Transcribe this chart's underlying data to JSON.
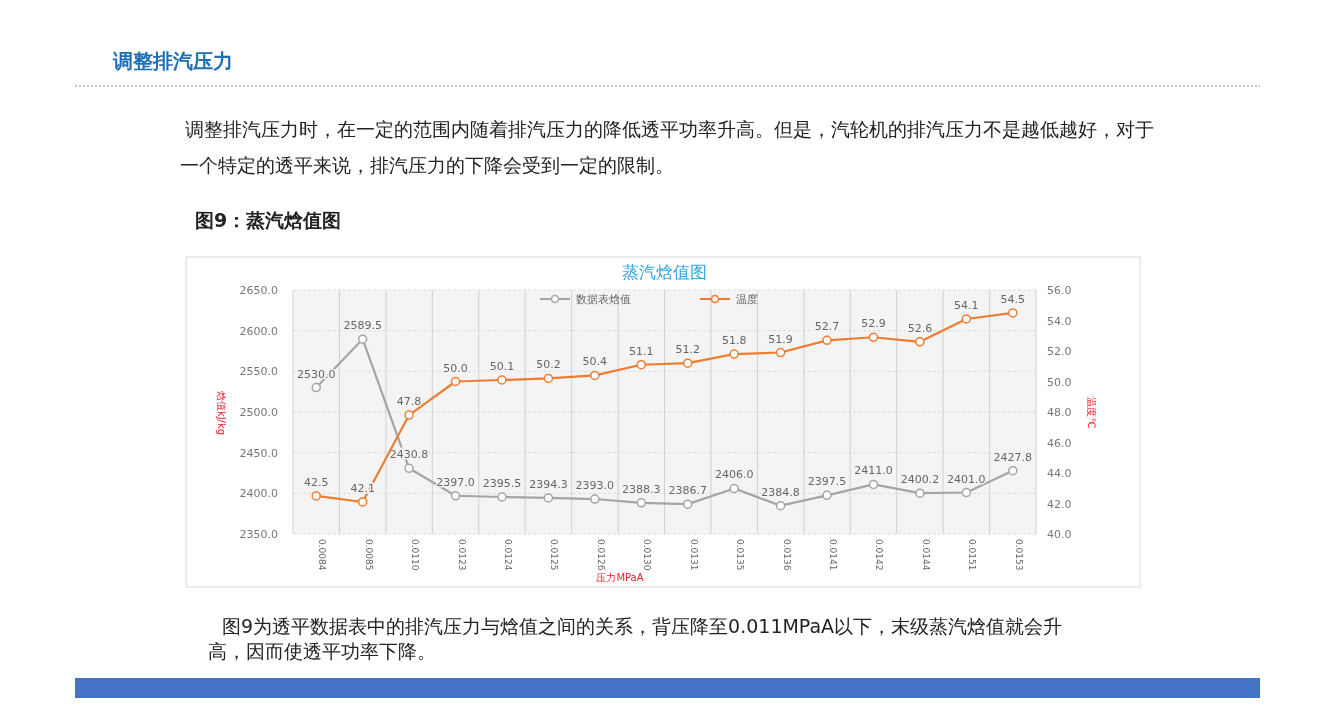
{
  "chart_data": {
    "type": "line",
    "title": "蒸汽焓值图",
    "xlabel": "压力MPaA",
    "ylabel": "焓值kJ/kg",
    "y2label": "温度℃",
    "annotations": [
      "调整排汽压力",
      "调整排汽压力时，在一定的范围内随着排汽压力的降低透平功率升高。但是，汽轮机的排汽压力不是越低越好，对于一个特定的透平来说，排汽压力的下降会受到一定的限制。",
      "图9：蒸汽焓值图",
      "图9为透平数据表中的排汽压力与焓值之间的关系，背压降至0.011MPaA以下，末级蒸汽焓值就会升高，因而使透平功率下降。"
    ],
    "categories": [
      "0.0084",
      "0.0085",
      "0.0110",
      "0.0123",
      "0.0124",
      "0.0125",
      "0.0126",
      "0.0130",
      "0.0131",
      "0.0135",
      "0.0136",
      "0.0141",
      "0.0142",
      "0.0144",
      "0.0151",
      "0.0153"
    ],
    "series": [
      {
        "name": "数据表焓值",
        "color": "#a5a5a5",
        "values": [
          2530.0,
          2589.5,
          2430.8,
          2397.0,
          2395.5,
          2394.3,
          2393.0,
          2388.3,
          2386.7,
          2406.0,
          2384.8,
          2397.5,
          2411.0,
          2400.2,
          2401.0,
          2427.8
        ],
        "value_labels": [
          "2530.0",
          "2589.5",
          "2430.8",
          "2397.0",
          "2395.5",
          "2394.3",
          "2393.0",
          "2388.3",
          "2386.7",
          "2406.0",
          "2384.8",
          "2397.5",
          "2411.0",
          "2400.2",
          "2401.0",
          "2427.8"
        ]
      },
      {
        "name": "温度",
        "color": "#ed7d31",
        "axis": "y2",
        "values": [
          42.5,
          42.1,
          47.8,
          50.0,
          50.1,
          50.2,
          50.4,
          51.1,
          51.2,
          51.8,
          51.9,
          52.7,
          52.9,
          52.6,
          54.1,
          54.5
        ],
        "value_labels": [
          "42.5",
          "42.1",
          "47.8",
          "50.0",
          "50.1",
          "50.2",
          "50.4",
          "51.1",
          "51.2",
          "51.8",
          "51.9",
          "52.7",
          "52.9",
          "52.6",
          "54.1",
          "54.5"
        ]
      }
    ],
    "ylim": [
      2350,
      2650
    ],
    "yticks": [
      {
        "value": 2350,
        "label": "2350.0"
      },
      {
        "value": 2400,
        "label": "2400.0"
      },
      {
        "value": 2450,
        "label": "2450.0"
      },
      {
        "value": 2500,
        "label": "2500.0"
      },
      {
        "value": 2550,
        "label": "2550.0"
      },
      {
        "value": 2600,
        "label": "2600.0"
      },
      {
        "value": 2650,
        "label": "2650.0"
      }
    ],
    "y2lim": [
      40,
      56
    ],
    "y2ticks": [
      {
        "value": 40,
        "label": "40.0"
      },
      {
        "value": 42,
        "label": "42.0"
      },
      {
        "value": 44,
        "label": "44.0"
      },
      {
        "value": 46,
        "label": "46.0"
      },
      {
        "value": 48,
        "label": "48.0"
      },
      {
        "value": 50,
        "label": "50.0"
      },
      {
        "value": 52,
        "label": "52.0"
      },
      {
        "value": 54,
        "label": "54.0"
      },
      {
        "value": 56,
        "label": "56.0"
      }
    ],
    "grid": true,
    "legend": "top",
    "marker": "circle",
    "line_style": "solid"
  }
}
